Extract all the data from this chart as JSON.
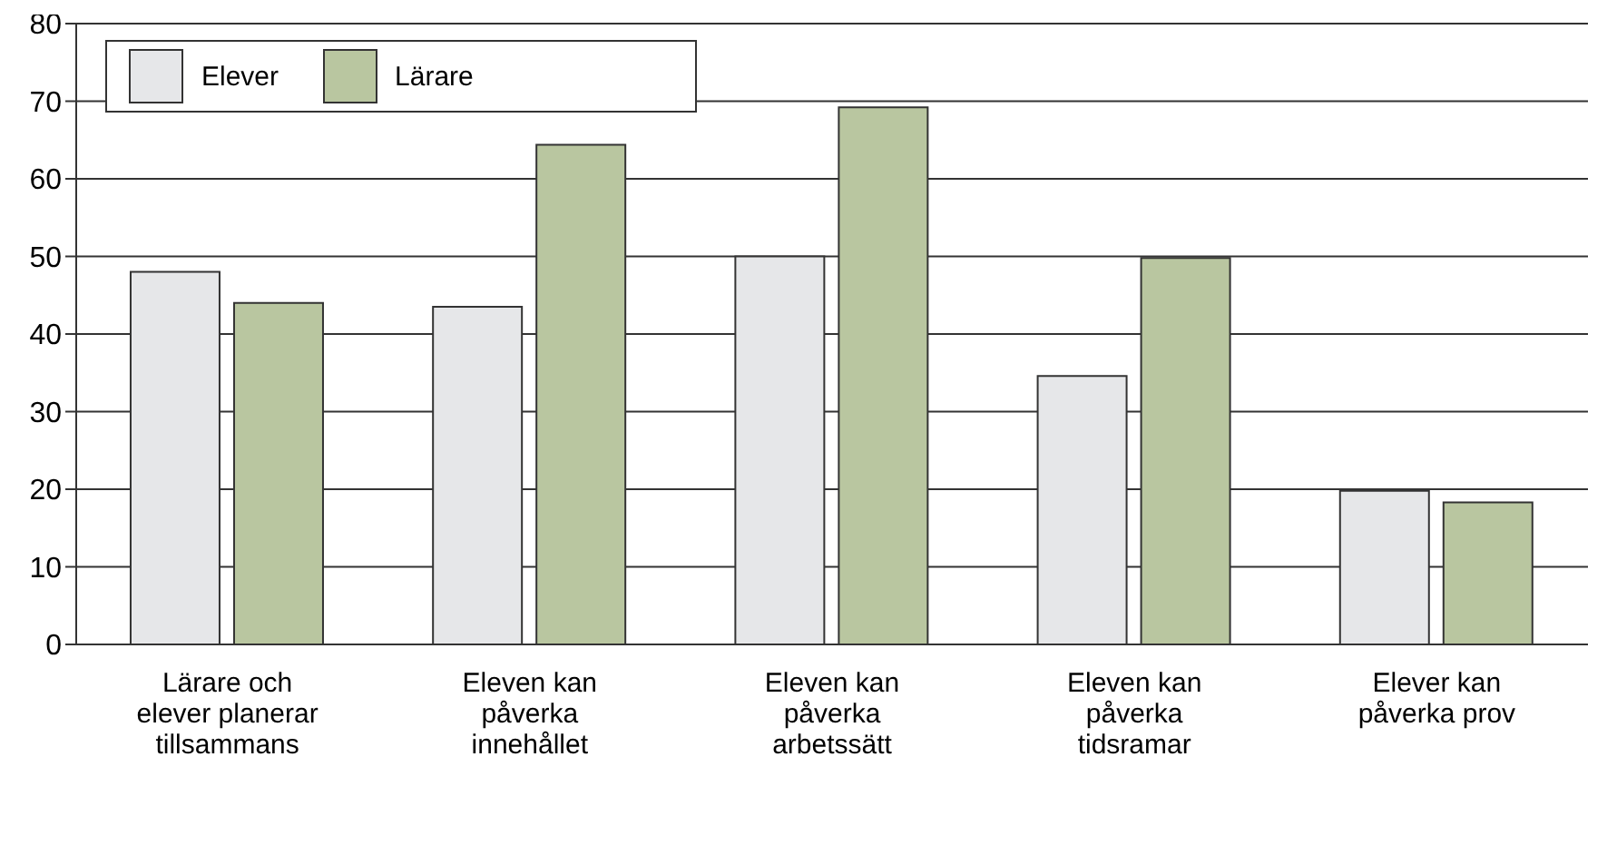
{
  "chart_data": {
    "type": "bar",
    "categories": [
      "Lärare och elever planerar tillsammans",
      "Eleven kan påverka innehållet",
      "Eleven kan påverka arbetssätt",
      "Eleven kan påverka tidsramar",
      "Elever kan påverka prov"
    ],
    "series": [
      {
        "name": "Elever",
        "color": "#e6e7e9",
        "values": [
          48,
          43.5,
          50,
          34.6,
          19.8
        ]
      },
      {
        "name": "Lärare",
        "color": "#b9c6a0",
        "values": [
          44,
          64.4,
          69.2,
          49.8,
          18.3
        ]
      }
    ],
    "ylim": [
      0,
      80
    ],
    "yticks": [
      0,
      10,
      20,
      30,
      40,
      50,
      60,
      70,
      80
    ],
    "grid": "y",
    "legend": "top left"
  }
}
